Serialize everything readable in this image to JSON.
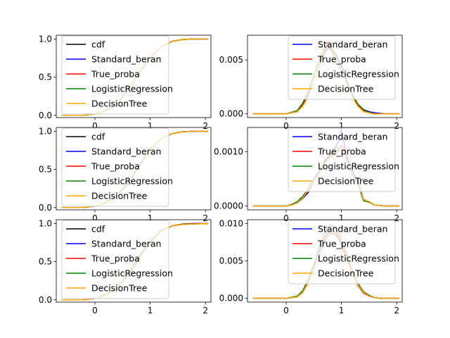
{
  "figure": {
    "rows": 3,
    "cols": 2,
    "background": "#ffffff"
  },
  "colors": {
    "cdf": "#000000",
    "Standard_beran": "#0000ff",
    "True_proba": "#ff0000",
    "LogisticRegression": "#008000",
    "DecisionTree": "#ffa500"
  },
  "chart_data": [
    {
      "type": "line",
      "row": 0,
      "col": 0,
      "kind": "cdf",
      "legend": "top-left",
      "xlim": [
        -0.7,
        2.1
      ],
      "ylim": [
        -0.03,
        1.05
      ],
      "xticks": [
        0,
        1,
        2
      ],
      "xtick_labels": [
        "0",
        "1",
        "2"
      ],
      "yticks": [
        0,
        0.5,
        1.0
      ],
      "ytick_labels": [
        "0.0",
        "0.5",
        "1.0"
      ],
      "x": [
        -0.6,
        -0.2,
        0.0,
        0.2,
        0.4,
        0.6,
        0.8,
        1.0,
        1.2,
        1.4,
        1.6,
        1.8,
        2.05
      ],
      "series": [
        {
          "name": "cdf",
          "color": "#000000",
          "values": [
            0.0,
            0.0,
            0.02,
            0.06,
            0.15,
            0.32,
            0.55,
            0.75,
            0.9,
            0.97,
            0.995,
            1.0,
            1.0
          ]
        },
        {
          "name": "Standard_beran",
          "color": "#0000ff",
          "values": [
            0.0,
            0.0,
            0.02,
            0.06,
            0.15,
            0.32,
            0.55,
            0.76,
            0.9,
            0.97,
            0.995,
            1.0,
            1.0
          ]
        },
        {
          "name": "True_proba",
          "color": "#ff0000",
          "values": [
            0.0,
            0.0,
            0.02,
            0.06,
            0.15,
            0.32,
            0.55,
            0.75,
            0.9,
            0.97,
            0.995,
            1.0,
            1.0
          ]
        },
        {
          "name": "LogisticRegression",
          "color": "#008000",
          "values": [
            0.0,
            0.0,
            0.02,
            0.07,
            0.16,
            0.33,
            0.56,
            0.76,
            0.9,
            0.97,
            0.995,
            1.0,
            1.0
          ]
        },
        {
          "name": "DecisionTree",
          "color": "#ffa500",
          "values": [
            0.0,
            0.0,
            0.02,
            0.06,
            0.15,
            0.32,
            0.55,
            0.75,
            0.9,
            0.97,
            0.995,
            1.0,
            1.0
          ]
        }
      ]
    },
    {
      "type": "line",
      "row": 0,
      "col": 1,
      "kind": "pdf",
      "legend": "top-right",
      "xlim": [
        -0.7,
        2.1
      ],
      "ylim": [
        -0.00035,
        0.0073
      ],
      "xticks": [
        0,
        1,
        2
      ],
      "xtick_labels": [
        "0",
        "1",
        "2"
      ],
      "yticks": [
        0.0,
        0.005
      ],
      "ytick_labels": [
        "0.000",
        "0.005"
      ],
      "x": [
        -0.6,
        -0.2,
        0.0,
        0.2,
        0.3,
        0.4,
        0.5,
        0.6,
        0.7,
        0.75,
        0.8,
        0.9,
        1.0,
        1.1,
        1.2,
        1.3,
        1.4,
        1.5,
        1.6,
        1.8,
        2.05
      ],
      "series": [
        {
          "name": "Standard_beran",
          "color": "#0000ff",
          "values": [
            0,
            0,
            0,
            0.0002,
            0.0008,
            0.0018,
            0.003,
            0.0045,
            0.0058,
            0.006,
            0.0063,
            0.0055,
            0.0045,
            0.003,
            0.0018,
            0.0008,
            0.0004,
            0.0002,
            0.0001,
            0,
            0
          ]
        },
        {
          "name": "True_proba",
          "color": "#ff0000",
          "values": [
            0,
            0,
            0,
            0.0002,
            0.0008,
            0.0017,
            0.003,
            0.0045,
            0.006,
            0.0065,
            0.006,
            0.0052,
            0.004,
            0.0028,
            0.0017,
            0.0008,
            0.0003,
            0.0001,
            0,
            0,
            0
          ]
        },
        {
          "name": "LogisticRegression",
          "color": "#008000",
          "values": [
            0,
            0,
            0,
            0.0003,
            0.001,
            0.0021,
            0.0035,
            0.005,
            0.0063,
            0.0066,
            0.0062,
            0.0052,
            0.0041,
            0.0029,
            0.0018,
            0.0009,
            0.0004,
            0.0001,
            0,
            0,
            0
          ]
        },
        {
          "name": "DecisionTree",
          "color": "#ffa500",
          "values": [
            0,
            0,
            0,
            0.0002,
            0.0007,
            0.0016,
            0.003,
            0.0046,
            0.0064,
            0.0068,
            0.0065,
            0.0053,
            0.0041,
            0.0027,
            0.0015,
            0.0007,
            0.0002,
            0.0001,
            0,
            0,
            0
          ]
        }
      ]
    },
    {
      "type": "line",
      "row": 1,
      "col": 0,
      "kind": "cdf",
      "legend": "top-left",
      "xlim": [
        -0.7,
        2.1
      ],
      "ylim": [
        -0.03,
        1.05
      ],
      "xticks": [
        0,
        1,
        2
      ],
      "xtick_labels": [
        "0",
        "1",
        "2"
      ],
      "yticks": [
        0,
        0.5,
        1.0
      ],
      "ytick_labels": [
        "0.0",
        "0.5",
        "1.0"
      ],
      "x": [
        -0.6,
        -0.2,
        0.0,
        0.2,
        0.4,
        0.6,
        0.8,
        1.0,
        1.2,
        1.4,
        1.6,
        1.8,
        2.05
      ],
      "series": [
        {
          "name": "cdf",
          "color": "#000000",
          "values": [
            0.0,
            0.0,
            0.02,
            0.06,
            0.15,
            0.32,
            0.55,
            0.75,
            0.9,
            0.97,
            0.995,
            1.0,
            1.0
          ]
        },
        {
          "name": "Standard_beran",
          "color": "#0000ff",
          "values": [
            0.0,
            0.0,
            0.02,
            0.06,
            0.15,
            0.31,
            0.54,
            0.75,
            0.9,
            0.97,
            0.995,
            1.0,
            1.0
          ]
        },
        {
          "name": "True_proba",
          "color": "#ff0000",
          "values": [
            0.0,
            0.0,
            0.02,
            0.06,
            0.15,
            0.32,
            0.55,
            0.75,
            0.9,
            0.97,
            0.995,
            1.0,
            1.0
          ]
        },
        {
          "name": "LogisticRegression",
          "color": "#008000",
          "values": [
            0.0,
            0.0,
            0.02,
            0.07,
            0.16,
            0.33,
            0.56,
            0.76,
            0.9,
            0.97,
            0.995,
            1.0,
            1.0
          ]
        },
        {
          "name": "DecisionTree",
          "color": "#ffa500",
          "values": [
            0.0,
            0.0,
            0.02,
            0.06,
            0.15,
            0.32,
            0.55,
            0.75,
            0.9,
            0.97,
            0.995,
            1.0,
            1.0
          ]
        }
      ]
    },
    {
      "type": "line",
      "row": 1,
      "col": 1,
      "kind": "pdf",
      "legend": "top-right",
      "xlim": [
        -0.7,
        2.1
      ],
      "ylim": [
        -7e-05,
        0.00145
      ],
      "xticks": [
        0,
        1,
        2
      ],
      "xtick_labels": [
        "0",
        "1",
        "2"
      ],
      "yticks": [
        0.0,
        0.001
      ],
      "ytick_labels": [
        "0.0000",
        "0.0010"
      ],
      "x": [
        -0.6,
        -0.2,
        0.0,
        0.1,
        0.2,
        0.3,
        0.4,
        0.5,
        0.6,
        0.7,
        0.8,
        0.9,
        0.95,
        1.0,
        1.05,
        1.1,
        1.2,
        1.3,
        1.4,
        1.5,
        1.6,
        1.8,
        2.05
      ],
      "series": [
        {
          "name": "Standard_beran",
          "color": "#0000ff",
          "values": [
            0,
            0,
            0,
            2e-05,
            6e-05,
            0.00014,
            0.00025,
            0.00045,
            0.00062,
            0.00085,
            0.00095,
            0.0011,
            0.0012,
            0.0014,
            0.00115,
            0.0009,
            0.00065,
            0.00045,
            0.00012,
            8e-05,
            2e-05,
            0,
            0
          ]
        },
        {
          "name": "True_proba",
          "color": "#ff0000",
          "values": [
            0,
            0,
            0,
            2e-05,
            6e-05,
            0.00015,
            0.00028,
            0.00045,
            0.0006,
            0.0008,
            0.00092,
            0.001,
            0.00105,
            0.00112,
            0.00105,
            0.00085,
            0.0006,
            0.0004,
            0.00012,
            8e-05,
            2e-05,
            0,
            0
          ]
        },
        {
          "name": "LogisticRegression",
          "color": "#008000",
          "values": [
            0,
            0,
            0,
            3e-05,
            8e-05,
            0.00018,
            0.00032,
            0.0005,
            0.00065,
            0.00082,
            0.00095,
            0.001,
            0.00102,
            0.00105,
            0.001,
            0.0008,
            0.00058,
            0.00038,
            0.0001,
            7e-05,
            2e-05,
            0,
            0
          ]
        },
        {
          "name": "DecisionTree",
          "color": "#ffa500",
          "values": [
            0,
            0,
            0,
            2e-05,
            6e-05,
            0.00015,
            0.0003,
            0.00045,
            0.0006,
            0.00078,
            0.0009,
            0.00098,
            0.001,
            0.00105,
            0.001,
            0.00082,
            0.0006,
            0.0004,
            0.00012,
            8e-05,
            2e-05,
            0,
            0
          ]
        }
      ]
    },
    {
      "type": "line",
      "row": 2,
      "col": 0,
      "kind": "cdf",
      "legend": "top-left",
      "xlim": [
        -0.7,
        2.1
      ],
      "ylim": [
        -0.03,
        1.05
      ],
      "xticks": [
        0,
        1,
        2
      ],
      "xtick_labels": [
        "0",
        "1",
        "2"
      ],
      "yticks": [
        0,
        0.5,
        1.0
      ],
      "ytick_labels": [
        "0.0",
        "0.5",
        "1.0"
      ],
      "x": [
        -0.6,
        -0.2,
        0.0,
        0.2,
        0.4,
        0.6,
        0.8,
        1.0,
        1.2,
        1.4,
        1.6,
        1.8,
        2.05
      ],
      "series": [
        {
          "name": "cdf",
          "color": "#000000",
          "values": [
            0.0,
            0.0,
            0.02,
            0.06,
            0.15,
            0.32,
            0.55,
            0.75,
            0.9,
            0.97,
            0.995,
            1.0,
            1.0
          ]
        },
        {
          "name": "Standard_beran",
          "color": "#0000ff",
          "values": [
            0.0,
            0.0,
            0.02,
            0.06,
            0.15,
            0.31,
            0.54,
            0.75,
            0.9,
            0.97,
            0.99,
            0.995,
            1.0
          ]
        },
        {
          "name": "True_proba",
          "color": "#ff0000",
          "values": [
            0.0,
            0.0,
            0.02,
            0.06,
            0.15,
            0.32,
            0.55,
            0.75,
            0.9,
            0.97,
            0.99,
            0.995,
            1.0
          ]
        },
        {
          "name": "LogisticRegression",
          "color": "#008000",
          "values": [
            0.0,
            0.0,
            0.02,
            0.07,
            0.16,
            0.34,
            0.57,
            0.77,
            0.91,
            0.97,
            0.99,
            0.995,
            1.0
          ]
        },
        {
          "name": "DecisionTree",
          "color": "#ffa500",
          "values": [
            0.0,
            0.0,
            0.02,
            0.06,
            0.15,
            0.32,
            0.55,
            0.75,
            0.9,
            0.97,
            0.99,
            0.995,
            1.0
          ]
        }
      ]
    },
    {
      "type": "line",
      "row": 2,
      "col": 1,
      "kind": "pdf",
      "legend": "top-right",
      "xlim": [
        -0.7,
        2.1
      ],
      "ylim": [
        -0.0005,
        0.0105
      ],
      "xticks": [
        0,
        1,
        2
      ],
      "xtick_labels": [
        "0",
        "1",
        "2"
      ],
      "yticks": [
        0.0,
        0.005,
        0.01
      ],
      "ytick_labels": [
        "0.000",
        "0.005",
        "0.010"
      ],
      "x": [
        -0.6,
        -0.2,
        0.0,
        0.2,
        0.3,
        0.4,
        0.5,
        0.6,
        0.7,
        0.8,
        0.9,
        1.0,
        1.1,
        1.2,
        1.3,
        1.4,
        1.5,
        1.6,
        1.7,
        1.8,
        2.05
      ],
      "series": [
        {
          "name": "Standard_beran",
          "color": "#0000ff",
          "values": [
            0,
            0,
            0,
            0.0002,
            0.0008,
            0.0022,
            0.004,
            0.0062,
            0.0082,
            0.0092,
            0.0088,
            0.0075,
            0.0055,
            0.0035,
            0.0018,
            0.0008,
            0.0003,
            0.0001,
            0,
            0,
            0
          ]
        },
        {
          "name": "True_proba",
          "color": "#ff0000",
          "values": [
            0,
            0,
            0,
            0.0002,
            0.0008,
            0.0021,
            0.0038,
            0.0058,
            0.0077,
            0.0087,
            0.0085,
            0.0072,
            0.0052,
            0.0033,
            0.0017,
            0.0007,
            0.0003,
            0.0001,
            0,
            0,
            0
          ]
        },
        {
          "name": "LogisticRegression",
          "color": "#008000",
          "values": [
            0,
            0,
            0,
            0.0003,
            0.001,
            0.0026,
            0.0045,
            0.0068,
            0.0088,
            0.0099,
            0.0094,
            0.0078,
            0.0058,
            0.0037,
            0.002,
            0.0009,
            0.0004,
            0.0001,
            0,
            0,
            0
          ]
        },
        {
          "name": "DecisionTree",
          "color": "#ffa500",
          "values": [
            0,
            0,
            0,
            0.0002,
            0.0008,
            0.0022,
            0.0039,
            0.006,
            0.008,
            0.0091,
            0.0089,
            0.0076,
            0.0055,
            0.0034,
            0.0018,
            0.0008,
            0.0003,
            0.0001,
            0,
            0,
            0
          ]
        }
      ]
    }
  ]
}
